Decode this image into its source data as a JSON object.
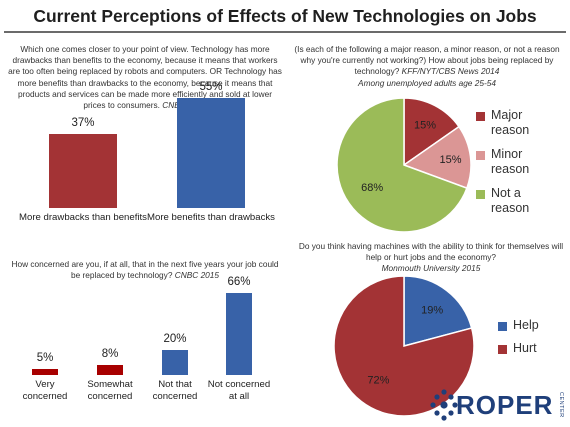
{
  "title": "Current Perceptions of Effects of New Technologies on Jobs",
  "colors": {
    "red": "#a33335",
    "blue": "#3862a8",
    "pink": "#db9695",
    "green": "#9bbb58",
    "logo_blue": "#1f3f7a"
  },
  "logo": {
    "text": "ROPER",
    "sub": "CENTER",
    "icon": "roper-dots-icon"
  },
  "chart_data": [
    {
      "type": "bar",
      "question": "Which one comes closer to your point of view. Technology has more drawbacks than benefits to the economy, because it means that workers are too often being replaced by robots and computers. OR Technology has more benefits than drawbacks to the economy, because it means that products and services can be made more efficiently and sold at lower prices to consumers.",
      "source": "CNBC 2015",
      "categories": [
        "More drawbacks than benefits",
        "More benefits than drawbacks"
      ],
      "values": [
        37,
        55
      ],
      "labels": [
        "37%",
        "55%"
      ],
      "colors": [
        "#a33335",
        "#3862a8"
      ],
      "ylim": [
        0,
        60
      ]
    },
    {
      "type": "bar",
      "question": "How concerned are you, if at all, that in the next five years your job could be replaced by technology?",
      "source": "CNBC 2015",
      "categories": [
        "Very concerned",
        "Somewhat concerned",
        "Not that concerned",
        "Not concerned at all"
      ],
      "values": [
        5,
        8,
        20,
        66
      ],
      "labels": [
        "5%",
        "8%",
        "20%",
        "66%"
      ],
      "colors": [
        "#a80000",
        "#a80000",
        "#3862a8",
        "#3862a8"
      ],
      "ylim": [
        0,
        70
      ]
    },
    {
      "type": "pie",
      "question": "(Is each of the following a major reason, a minor reason, or not a reason why you're currently not working?) How about jobs being replaced by technology?",
      "source": "KFF/NYT/CBS News 2014",
      "population": "Among unemployed adults age 25-54",
      "slices": [
        {
          "name": "Major reason",
          "value": 15,
          "label": "15%",
          "color": "#a33335"
        },
        {
          "name": "Minor reason",
          "value": 15,
          "label": "15%",
          "color": "#db9695"
        },
        {
          "name": "Not a reason",
          "value": 68,
          "label": "68%",
          "color": "#9bbb58"
        }
      ],
      "legend_position": "right"
    },
    {
      "type": "pie",
      "question": "Do you think having machines with the ability to think for themselves will help or hurt jobs and the economy?",
      "source": "Monmouth University 2015",
      "slices": [
        {
          "name": "Help",
          "value": 19,
          "label": "19%",
          "color": "#3862a8"
        },
        {
          "name": "Hurt",
          "value": 72,
          "label": "72%",
          "color": "#a33335"
        }
      ],
      "legend_position": "right"
    }
  ]
}
